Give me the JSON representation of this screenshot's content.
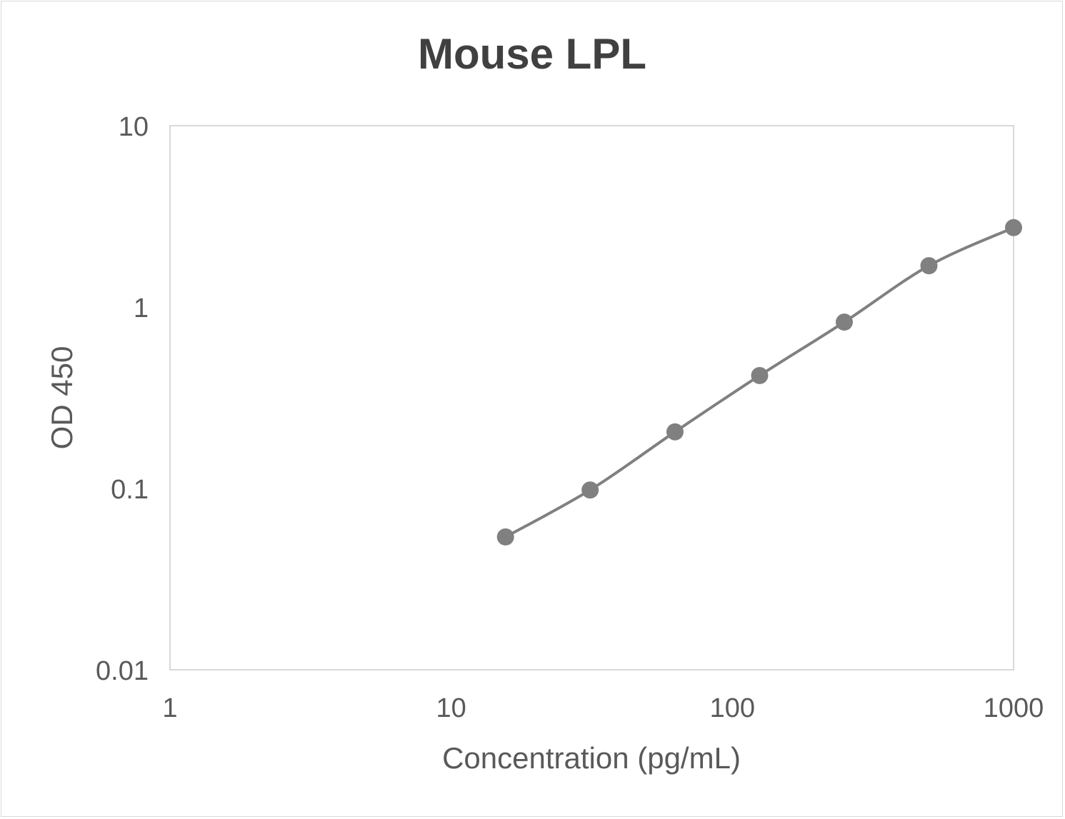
{
  "chart_data": {
    "type": "line",
    "title": "Mouse LPL",
    "xlabel": "Concentration (pg/mL)",
    "ylabel": "OD 450",
    "x_scale": "log",
    "y_scale": "log",
    "xlim": [
      1,
      1000
    ],
    "ylim": [
      0.01,
      10
    ],
    "x_ticks": [
      "1",
      "10",
      "100",
      "1000"
    ],
    "y_ticks": [
      "0.01",
      "0.1",
      "1",
      "10"
    ],
    "grid": false,
    "legend": "none",
    "smooth": true,
    "series": [
      {
        "color": "#808080",
        "x": [
          15.6,
          31.2,
          62.5,
          125,
          250,
          500,
          1000
        ],
        "y": [
          0.054,
          0.098,
          0.205,
          0.419,
          0.826,
          1.69,
          2.74
        ]
      }
    ]
  }
}
